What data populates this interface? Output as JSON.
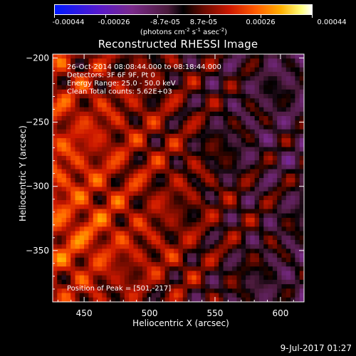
{
  "colorbar": {
    "ticks": [
      "-0.00044",
      "-0.00026",
      "-8.7e-05",
      "8.7e-05",
      "0.00026",
      "0.00044"
    ],
    "units_text": "(photons cm",
    "units_exp1": "-2",
    "units_s": " s",
    "units_exp2": "-1",
    "units_asec": " asec",
    "units_exp3": "-2",
    "units_close": ")"
  },
  "chart_data": {
    "type": "heatmap",
    "title": "Reconstructed RHESSI Image",
    "xlabel": "Heliocentric X (arcsec)",
    "ylabel": "Heliocentric Y (arcsec)",
    "xlim": [
      426,
      618
    ],
    "ylim": [
      -390,
      -197
    ],
    "x_ticks": [
      450,
      500,
      550,
      600
    ],
    "y_ticks": [
      -200,
      -250,
      -300,
      -350
    ],
    "colorbar_range": [
      -0.00044,
      0.00044
    ],
    "colormap": "blue-purple-black-red-orange-yellow-white",
    "annotations": [
      "26-Oct-2014 08:08:44.000 to 08:18:44.000",
      "Detectors: 3F 6F 9F, Pt 0",
      "Energy Range: 25.0 - 50.0 keV",
      "Clean    Total counts: 5.62E+03"
    ],
    "peak_text": "Position of Peak = [501,-217]",
    "peak": [
      501,
      -217
    ]
  },
  "timestamp": "9-Jul-2017 01:27"
}
